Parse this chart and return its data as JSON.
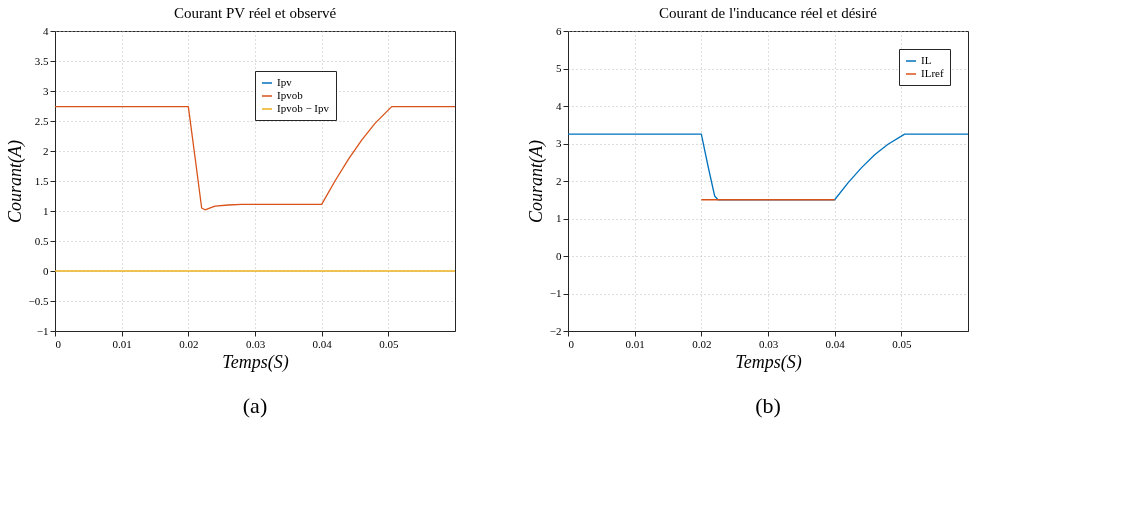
{
  "chart_data": [
    {
      "type": "line",
      "title": "Courant PV réel et observé",
      "xlabel": "Temps(S)",
      "ylabel": "Courant(A)",
      "xlim": [
        0,
        0.06
      ],
      "xticks": [
        0,
        0.01,
        0.02,
        0.03,
        0.04,
        0.05
      ],
      "ylim": [
        -1,
        4
      ],
      "yticks": [
        -1,
        -0.5,
        0,
        0.5,
        1,
        1.5,
        2,
        2.5,
        3,
        3.5,
        4
      ],
      "grid": true,
      "legend": "top",
      "marker": "none",
      "line_style": "solid",
      "annotations": [
        "(a)"
      ],
      "series": [
        {
          "name": "Ipv",
          "color": "#0072bd"
        },
        {
          "name": "Ipvob",
          "color": "#d95319",
          "x": [
            0,
            0.02,
            0.021,
            0.022,
            0.0225,
            0.023,
            0.024,
            0.026,
            0.028,
            0.03,
            0.04,
            0.042,
            0.044,
            0.046,
            0.048,
            0.0505,
            0.06
          ],
          "values": [
            2.74,
            2.74,
            1.9,
            1.05,
            1.02,
            1.04,
            1.08,
            1.1,
            1.11,
            1.11,
            1.11,
            1.5,
            1.86,
            2.18,
            2.46,
            2.74,
            2.74
          ]
        },
        {
          "name": "Ipvob − Ipv",
          "color": "#edb120",
          "x": [
            0,
            0.06
          ],
          "values": [
            0,
            0
          ]
        }
      ]
    },
    {
      "type": "line",
      "title": "Courant de l'inducance réel et désiré",
      "xlabel": "Temps(S)",
      "ylabel": "Courant(A)",
      "xlim": [
        0,
        0.06
      ],
      "xticks": [
        0,
        0.01,
        0.02,
        0.03,
        0.04,
        0.05
      ],
      "ylim": [
        -2,
        6
      ],
      "yticks": [
        -2,
        -1,
        0,
        1,
        2,
        3,
        4,
        5,
        6
      ],
      "grid": true,
      "legend": "top right",
      "marker": "none",
      "line_style": "solid",
      "annotations": [
        "(b)"
      ],
      "series": [
        {
          "name": "IL",
          "color": "#0072bd",
          "x": [
            0,
            0.02,
            0.021,
            0.022,
            0.0225,
            0.023,
            0.04,
            0.042,
            0.044,
            0.046,
            0.048,
            0.0505,
            0.06
          ],
          "values": [
            3.25,
            3.25,
            2.4,
            1.6,
            1.5,
            1.5,
            1.5,
            1.95,
            2.35,
            2.7,
            2.98,
            3.25,
            3.25
          ]
        },
        {
          "name": "ILref",
          "color": "#d95319",
          "x": [
            0.02,
            0.04
          ],
          "values": [
            1.5,
            1.5
          ]
        }
      ]
    }
  ]
}
